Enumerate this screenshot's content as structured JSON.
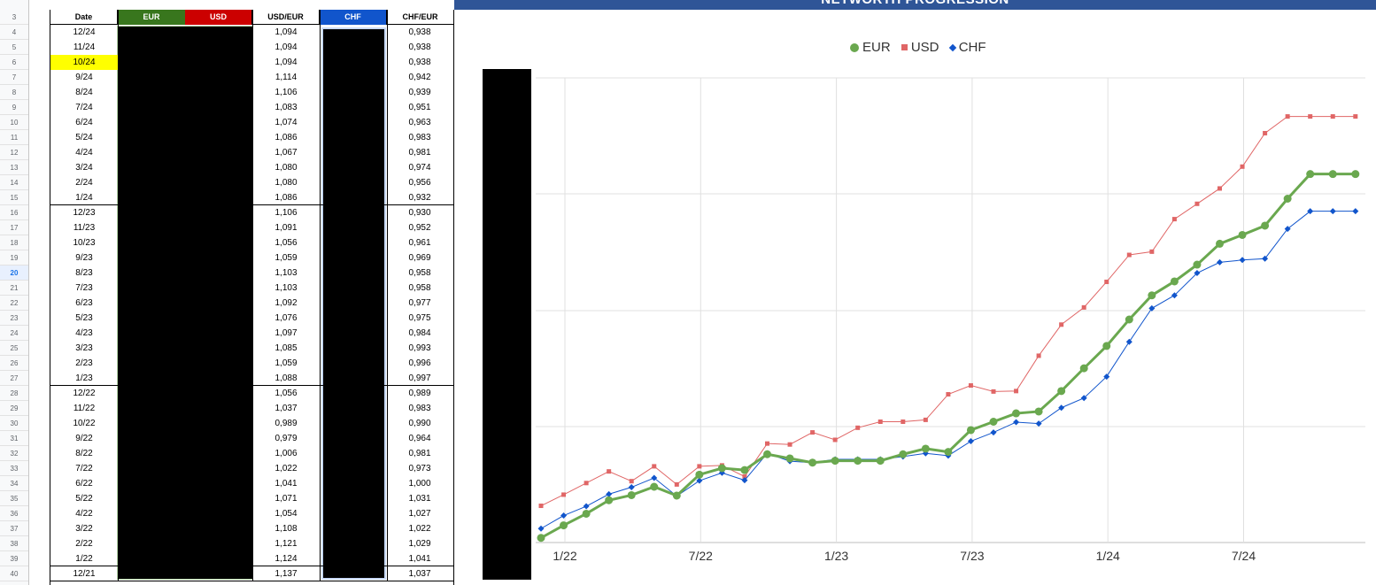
{
  "title": "NETWORTH PROGRESSION",
  "row_numbers": [
    3,
    4,
    5,
    6,
    7,
    8,
    9,
    10,
    11,
    12,
    13,
    14,
    15,
    16,
    17,
    18,
    19,
    20,
    21,
    22,
    23,
    24,
    25,
    26,
    27,
    28,
    29,
    30,
    31,
    32,
    33,
    34,
    35,
    36,
    37,
    38,
    39,
    40
  ],
  "active_row": 20,
  "headers": {
    "date": "Date",
    "eur": "EUR",
    "usd": "USD",
    "usdeur": "USD/EUR",
    "chf": "CHF",
    "chfeur": "CHF/EUR"
  },
  "colors": {
    "eur_header": "#38761d",
    "usd_header": "#cc0000",
    "chf_header": "#1155cc",
    "eur_series": "#6aa84f",
    "usd_series": "#e06666",
    "chf_series": "#1155cc",
    "highlight": "#ffff00",
    "title_bar": "#2f5597"
  },
  "rows": [
    {
      "date": "12/24",
      "usdeur": "1,094",
      "chfeur": "0,938"
    },
    {
      "date": "11/24",
      "usdeur": "1,094",
      "chfeur": "0,938"
    },
    {
      "date": "10/24",
      "usdeur": "1,094",
      "chfeur": "0,938",
      "highlight": true
    },
    {
      "date": "9/24",
      "usdeur": "1,114",
      "chfeur": "0,942"
    },
    {
      "date": "8/24",
      "usdeur": "1,106",
      "chfeur": "0,939"
    },
    {
      "date": "7/24",
      "usdeur": "1,083",
      "chfeur": "0,951"
    },
    {
      "date": "6/24",
      "usdeur": "1,074",
      "chfeur": "0,963"
    },
    {
      "date": "5/24",
      "usdeur": "1,086",
      "chfeur": "0,983"
    },
    {
      "date": "4/24",
      "usdeur": "1,067",
      "chfeur": "0,981"
    },
    {
      "date": "3/24",
      "usdeur": "1,080",
      "chfeur": "0,974"
    },
    {
      "date": "2/24",
      "usdeur": "1,080",
      "chfeur": "0,956"
    },
    {
      "date": "1/24",
      "usdeur": "1,086",
      "chfeur": "0,932"
    },
    {
      "date": "12/23",
      "usdeur": "1,106",
      "chfeur": "0,930"
    },
    {
      "date": "11/23",
      "usdeur": "1,091",
      "chfeur": "0,952"
    },
    {
      "date": "10/23",
      "usdeur": "1,056",
      "chfeur": "0,961"
    },
    {
      "date": "9/23",
      "usdeur": "1,059",
      "chfeur": "0,969"
    },
    {
      "date": "8/23",
      "usdeur": "1,103",
      "chfeur": "0,958"
    },
    {
      "date": "7/23",
      "usdeur": "1,103",
      "chfeur": "0,958"
    },
    {
      "date": "6/23",
      "usdeur": "1,092",
      "chfeur": "0,977"
    },
    {
      "date": "5/23",
      "usdeur": "1,076",
      "chfeur": "0,975"
    },
    {
      "date": "4/23",
      "usdeur": "1,097",
      "chfeur": "0,984"
    },
    {
      "date": "3/23",
      "usdeur": "1,085",
      "chfeur": "0,993"
    },
    {
      "date": "2/23",
      "usdeur": "1,059",
      "chfeur": "0,996"
    },
    {
      "date": "1/23",
      "usdeur": "1,088",
      "chfeur": "0,997"
    },
    {
      "date": "12/22",
      "usdeur": "1,056",
      "chfeur": "0,989"
    },
    {
      "date": "11/22",
      "usdeur": "1,037",
      "chfeur": "0,983"
    },
    {
      "date": "10/22",
      "usdeur": "0,989",
      "chfeur": "0,990"
    },
    {
      "date": "9/22",
      "usdeur": "0,979",
      "chfeur": "0,964"
    },
    {
      "date": "8/22",
      "usdeur": "1,006",
      "chfeur": "0,981"
    },
    {
      "date": "7/22",
      "usdeur": "1,022",
      "chfeur": "0,973"
    },
    {
      "date": "6/22",
      "usdeur": "1,041",
      "chfeur": "1,000"
    },
    {
      "date": "5/22",
      "usdeur": "1,071",
      "chfeur": "1,031"
    },
    {
      "date": "4/22",
      "usdeur": "1,054",
      "chfeur": "1,027"
    },
    {
      "date": "3/22",
      "usdeur": "1,108",
      "chfeur": "1,022"
    },
    {
      "date": "2/22",
      "usdeur": "1,121",
      "chfeur": "1,029"
    },
    {
      "date": "1/22",
      "usdeur": "1,124",
      "chfeur": "1,041"
    },
    {
      "date": "12/21",
      "usdeur": "1,137",
      "chfeur": "1,037"
    }
  ],
  "chart_data": {
    "type": "line",
    "title": "",
    "legend_position": "top-center",
    "x": [
      "1/22",
      "2/22",
      "3/22",
      "4/22",
      "5/22",
      "6/22",
      "7/22",
      "8/22",
      "9/22",
      "10/22",
      "11/22",
      "12/22",
      "1/23",
      "2/23",
      "3/23",
      "4/23",
      "5/23",
      "6/23",
      "7/23",
      "8/23",
      "9/23",
      "10/23",
      "11/23",
      "12/23",
      "1/24",
      "2/24",
      "3/24",
      "4/24",
      "5/24",
      "6/24",
      "7/24",
      "8/24",
      "9/24",
      "10/24",
      "11/24",
      "12/24",
      "13/24"
    ],
    "x_tick_labels": [
      "1/22",
      "7/22",
      "1/23",
      "7/23",
      "1/24",
      "7/24"
    ],
    "grid": true,
    "y_axis_labels_visible": false,
    "ylim": [
      0,
      100
    ],
    "series": [
      {
        "name": "EUR",
        "marker": "circle",
        "values": [
          1,
          3.7,
          6.2,
          9.1,
          10.2,
          12,
          10.1,
          14.6,
          16,
          15.6,
          19,
          18.1,
          17.2,
          17.6,
          17.6,
          17.6,
          19,
          20.2,
          19.5,
          24.2,
          26,
          27.8,
          28.2,
          32.6,
          37.5,
          42.3,
          48,
          53.2,
          56.2,
          59.8,
          64.3,
          66.2,
          68.2,
          74,
          79.3,
          79.3,
          79.3
        ]
      },
      {
        "name": "USD",
        "marker": "square",
        "values": [
          7.9,
          10.3,
          12.8,
          15.3,
          13.2,
          16.4,
          12.5,
          16.4,
          16.6,
          14.2,
          21.3,
          21.1,
          23.7,
          22.1,
          24.7,
          26,
          26,
          26.4,
          31.9,
          33.8,
          32.5,
          32.6,
          40.2,
          46.9,
          50.6,
          56.1,
          61.9,
          62.6,
          69.6,
          72.9,
          76.2,
          80.9,
          88.1,
          91.7,
          91.7,
          91.7,
          91.7
        ]
      },
      {
        "name": "CHF",
        "marker": "diamond",
        "values": [
          3,
          5.8,
          7.8,
          10.4,
          11.9,
          13.9,
          10,
          13.3,
          15,
          13.4,
          19.2,
          17.5,
          17.2,
          17.9,
          17.9,
          17.9,
          18.5,
          19.2,
          18.7,
          21.8,
          23.7,
          25.9,
          25.6,
          29,
          31.1,
          35.7,
          43.2,
          50.4,
          53.2,
          58,
          60.3,
          60.8,
          61.1,
          67.5,
          71.3,
          71.3,
          71.3
        ]
      }
    ]
  }
}
